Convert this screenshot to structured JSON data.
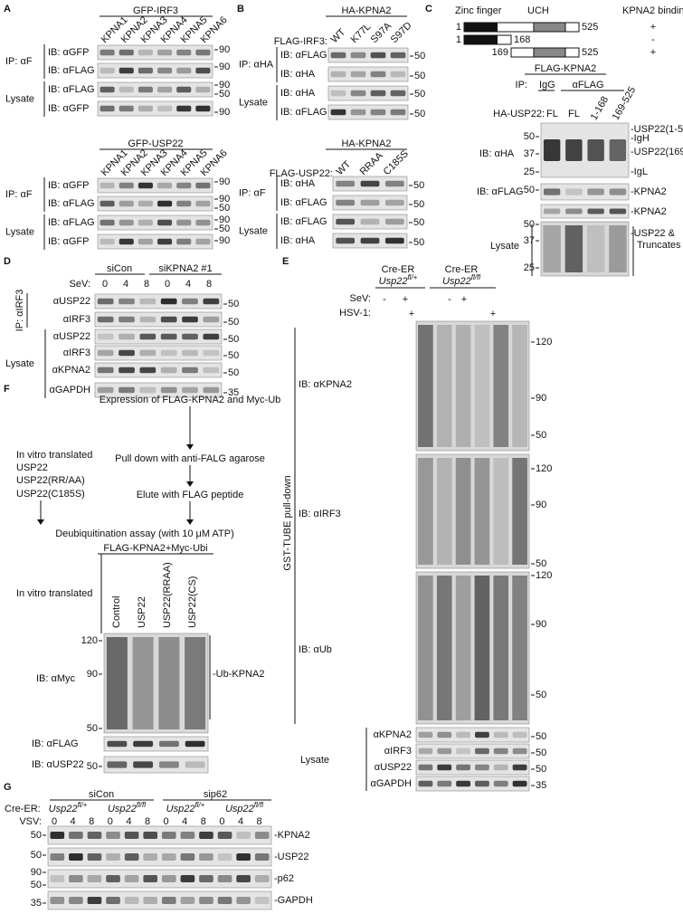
{
  "A": {
    "letter": "A",
    "top": {
      "construct": "GFP-IRF3",
      "lanes": [
        "KPNA1",
        "KPNA2",
        "KPNA3",
        "KPNA4",
        "KPNA5",
        "KPNA6"
      ],
      "groups": [
        "IP: αF",
        "Lysate"
      ],
      "rows": [
        "IB: αGFP",
        "IB: αFLAG",
        "IB: αFLAG",
        "IB: αGFP"
      ],
      "markers": [
        90,
        90,
        90,
        50,
        90
      ]
    },
    "bottom": {
      "construct": "GFP-USP22",
      "lanes": [
        "KPNA1",
        "KPNA2",
        "KPNA3",
        "KPNA4",
        "KPNA5",
        "KPNA6"
      ],
      "groups": [
        "IP: αF",
        "Lysate"
      ],
      "rows": [
        "IB: αGFP",
        "IB: αFLAG",
        "IB: αFLAG",
        "IB: αGFP"
      ],
      "markers": [
        90,
        90,
        50,
        90,
        50,
        90
      ]
    }
  },
  "B": {
    "letter": "B",
    "top": {
      "construct": "HA-KPNA2",
      "prefix": "FLAG-IRF3:",
      "lanes": [
        "WT",
        "K77L",
        "S97A",
        "S97D"
      ],
      "groups": [
        "IP: αHA",
        "Lysate"
      ],
      "rows": [
        "IB: αFLAG",
        "IB: αHA",
        "IB: αHA",
        "IB: αFLAG"
      ],
      "markers": [
        50,
        50,
        50,
        50
      ]
    },
    "bottom": {
      "construct": "HA-KPNA2",
      "prefix": "FLAG-USP22:",
      "lanes": [
        "WT",
        "RRAA",
        "C185S"
      ],
      "groups": [
        "IP: αF",
        "Lysate"
      ],
      "rows": [
        "IB: αHA",
        "IB: αFLAG",
        "IB: αFLAG",
        "IB: αHA"
      ],
      "markers": [
        50,
        50,
        50,
        50
      ]
    }
  },
  "C": {
    "letter": "C",
    "domains": [
      "Zinc finger",
      "UCH",
      "KPNA2 binding"
    ],
    "constructs": [
      {
        "start": "1",
        "end": "525",
        "binding": "+"
      },
      {
        "start": "1",
        "end": "168",
        "binding": "-"
      },
      {
        "start": "169",
        "end": "525",
        "binding": "+"
      }
    ],
    "ip_construct": "FLAG-KPNA2",
    "ip": "IP:",
    "ip_lanes": [
      "IgG",
      "αFLAG"
    ],
    "lane_prefix": "HA-USP22:",
    "lanes": [
      "FL",
      "FL",
      "1-168",
      "169-525"
    ],
    "rows": [
      "IB: αHA",
      "IB: αFLAG",
      "Lysate"
    ],
    "markers": [
      50,
      37,
      25,
      50,
      50,
      37,
      25
    ],
    "band_labels": [
      "-USP22(1-525)",
      "-IgH",
      "-USP22(169-525)",
      "-IgL",
      "-KPNA2",
      "-KPNA2",
      "-USP22 &",
      "Truncates"
    ]
  },
  "D": {
    "letter": "D",
    "groups": [
      "siCon",
      "siKPNA2 #1"
    ],
    "condition": "SeV:",
    "timepoints": [
      0,
      4,
      8,
      0,
      4,
      8
    ],
    "ip": "IP: αIRF3",
    "lysate": "Lysate",
    "rows": [
      "αUSP22",
      "αIRF3",
      "αUSP22",
      "αIRF3",
      "αKPNA2",
      "αGAPDH"
    ],
    "markers": [
      50,
      50,
      50,
      50,
      50,
      35
    ]
  },
  "E": {
    "letter": "E",
    "genotypes": [
      {
        "line": "Cre-ER",
        "gene": "Usp22",
        "allele": "fl/+"
      },
      {
        "line": "Cre-ER",
        "gene": "Usp22",
        "allele": "fl/fl"
      }
    ],
    "conditions": [
      {
        "name": "SeV:",
        "marks": [
          "-",
          "+",
          "-",
          "+"
        ]
      },
      {
        "name": "HSV-1:",
        "marks": [
          "+",
          "+"
        ]
      }
    ],
    "pulldown": "GST-TUBE pull-down",
    "rows": [
      "IB: αKPNA2",
      "IB: αIRF3",
      "IB: αUb"
    ],
    "markers": [
      [
        120,
        90,
        50
      ],
      [
        120,
        90,
        50
      ],
      [
        120,
        90,
        50
      ]
    ],
    "lysate": "Lysate",
    "lysate_rows": [
      "αKPNA2",
      "αIRF3",
      "αUSP22",
      "αGAPDH"
    ],
    "lysate_markers": [
      50,
      50,
      50,
      35
    ]
  },
  "F": {
    "letter": "F",
    "workflow": [
      "Expression of FLAG-KPNA2 and Myc-Ub",
      "Pull down with anti-FALG agarose",
      "Elute with FLAG peptide",
      "Deubiquitination assay (with 10 μM ATP)"
    ],
    "translated": [
      "In vitro translated",
      "USP22",
      "USP22(RR/AA)",
      "USP22(C185S)"
    ],
    "mix": "FLAG-KPNA2+Myc-Ubi",
    "lane_title": "In vitro translated",
    "lanes": [
      "Control",
      "USP22",
      "USP22(RRAA)",
      "USP22(CS)"
    ],
    "rows": [
      "IB: αMyc",
      "IB: αFLAG",
      "IB: αUSP22"
    ],
    "markers": [
      120,
      90,
      50,
      50
    ],
    "band_label": "-Ub-KPNA2"
  },
  "G": {
    "letter": "G",
    "groups": [
      "siCon",
      "sip62"
    ],
    "line": "Cre-ER:",
    "genotypes": [
      {
        "gene": "Usp22",
        "allele": "fl/+"
      },
      {
        "gene": "Usp22",
        "allele": "fl/fl"
      },
      {
        "gene": "Usp22",
        "allele": "fl/+"
      },
      {
        "gene": "Usp22",
        "allele": "fl/fl"
      }
    ],
    "condition": "VSV:",
    "timepoints": [
      0,
      4,
      8,
      0,
      4,
      8,
      0,
      4,
      8,
      0,
      4,
      8
    ],
    "markers": [
      50,
      50,
      90,
      50,
      35
    ],
    "rows": [
      "-KPNA2",
      "-USP22",
      "-p62",
      "-GAPDH"
    ]
  }
}
